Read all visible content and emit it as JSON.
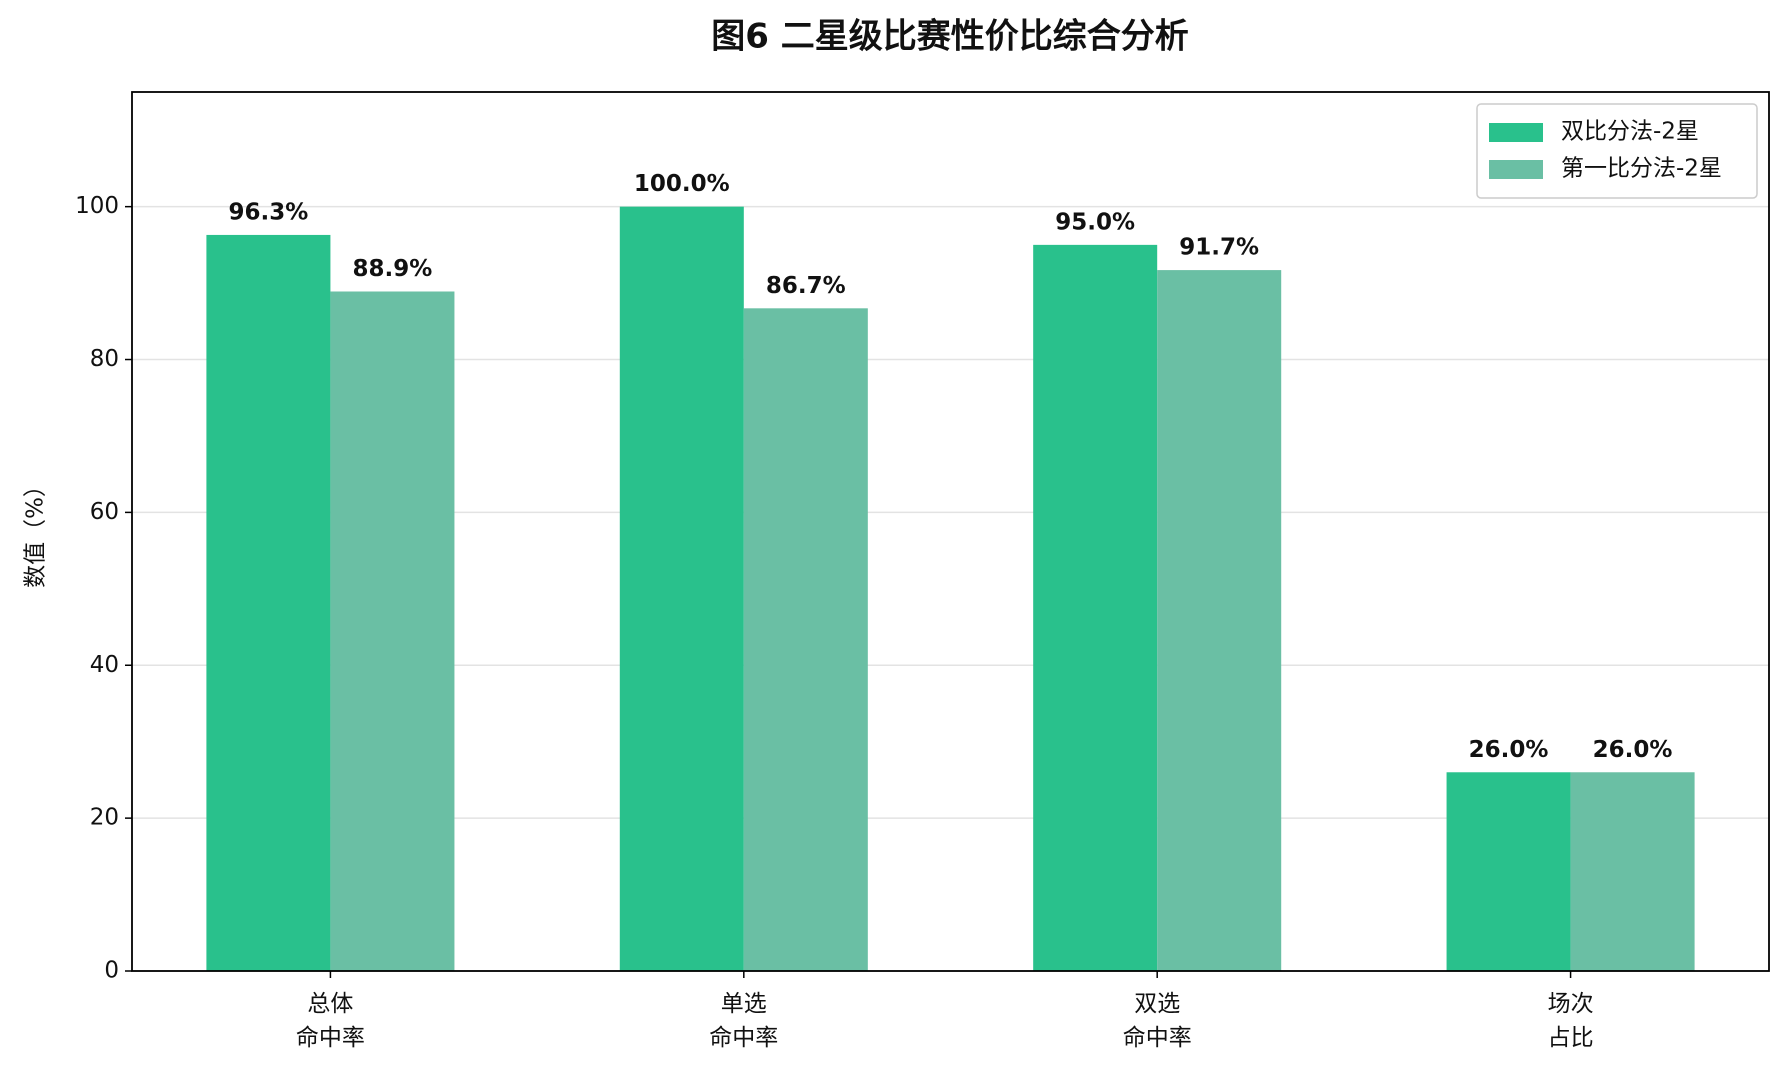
{
  "chart_data": {
    "type": "bar",
    "title": "图6  二星级比赛性价比综合分析",
    "y_label": "数值（%）",
    "categories": [
      "总体\n命中率",
      "单选\n命中率",
      "双选\n命中率",
      "场次\n占比"
    ],
    "series": [
      {
        "name": "双比分法-2星",
        "color": "#29c18c",
        "values": [
          96.3,
          100.0,
          95.0,
          26.0
        ],
        "value_labels": [
          "96.3%",
          "100.0%",
          "95.0%",
          "26.0%"
        ]
      },
      {
        "name": "第一比分法-2星",
        "color": "#6abfa4",
        "values": [
          88.9,
          86.7,
          91.7,
          26.0
        ],
        "value_labels": [
          "88.9%",
          "86.7%",
          "91.7%",
          "26.0%"
        ]
      }
    ],
    "ylim": [
      0,
      115
    ],
    "yticks": [
      0,
      20,
      40,
      60,
      80,
      100
    ],
    "grid": true,
    "legend": "upper right"
  }
}
